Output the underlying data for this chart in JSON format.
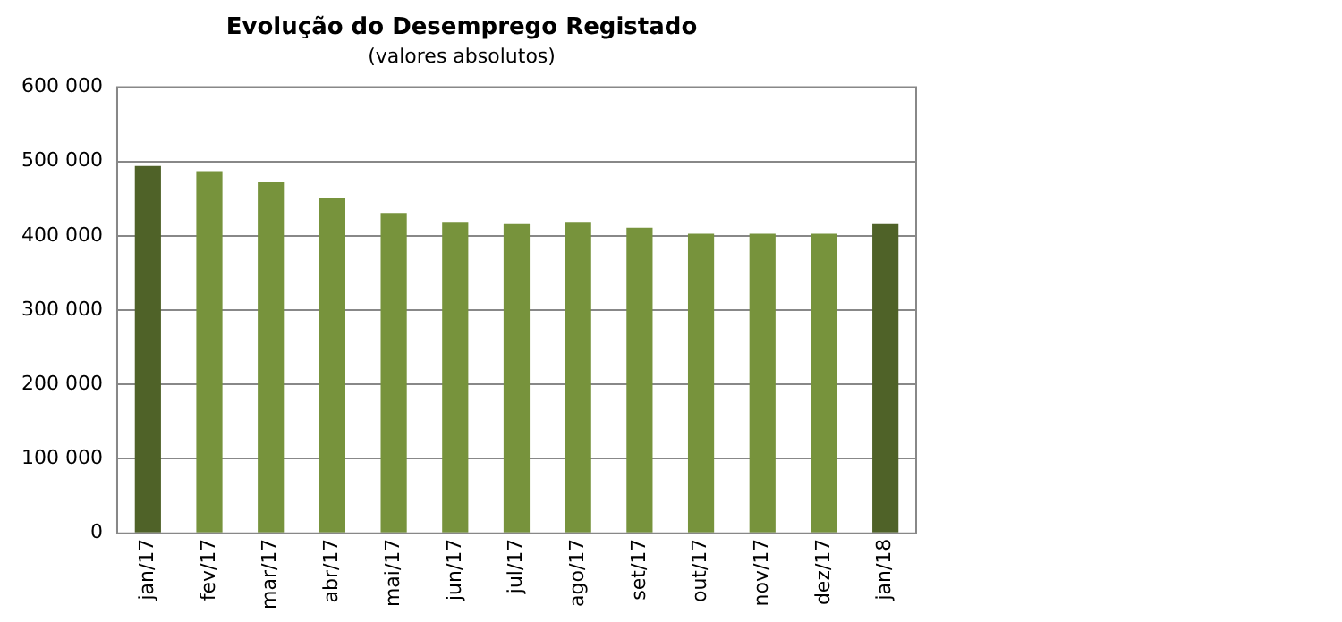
{
  "chart_data": {
    "type": "bar",
    "title": "Evolução do Desemprego Registado",
    "subtitle": "(valores absolutos)",
    "categories": [
      "jan/17",
      "fev/17",
      "mar/17",
      "abr/17",
      "mai/17",
      "jun/17",
      "jul/17",
      "ago/17",
      "set/17",
      "out/17",
      "nov/17",
      "dez/17",
      "jan/18"
    ],
    "values": [
      494000,
      487000,
      472000,
      451000,
      431000,
      419000,
      416000,
      419000,
      411000,
      403000,
      403000,
      403000,
      416000
    ],
    "colors": [
      "#4f6228",
      "#77933c",
      "#77933c",
      "#77933c",
      "#77933c",
      "#77933c",
      "#77933c",
      "#77933c",
      "#77933c",
      "#77933c",
      "#77933c",
      "#77933c",
      "#4f6228"
    ],
    "ylim": [
      0,
      600000
    ],
    "yticks": [
      {
        "value": 0,
        "label": "0"
      },
      {
        "value": 100000,
        "label": "100 000"
      },
      {
        "value": 200000,
        "label": "200 000"
      },
      {
        "value": 300000,
        "label": "300 000"
      },
      {
        "value": 400000,
        "label": "400 000"
      },
      {
        "value": 500000,
        "label": "500 000"
      },
      {
        "value": 600000,
        "label": "600 000"
      }
    ],
    "grid": "y",
    "legend": false
  }
}
